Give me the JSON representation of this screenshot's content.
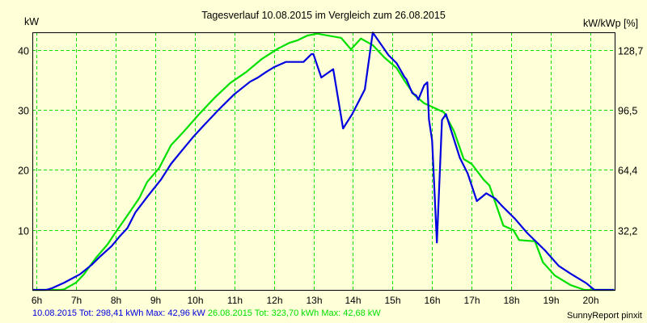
{
  "chart_data": {
    "type": "line",
    "title": "Tagesverlauf 10.08.2015 im Vergleich zum 26.08.2015",
    "xlabel": "",
    "ylabel": "kW",
    "ylabel_right": "kW/kWp [%]",
    "x_ticks": [
      "6h",
      "7h",
      "8h",
      "9h",
      "10h",
      "11h",
      "12h",
      "13h",
      "14h",
      "15h",
      "16h",
      "17h",
      "18h",
      "19h",
      "20h"
    ],
    "y_ticks": [
      10,
      20,
      30,
      40
    ],
    "y_ticks_right": [
      "32,2",
      "64,4",
      "96,5",
      "128,7"
    ],
    "ylim": [
      0,
      43
    ],
    "xlim": [
      5.9,
      20.6
    ],
    "grid": true,
    "series": [
      {
        "name": "10.08.2015",
        "color": "#0000e0",
        "x": [
          5.9,
          6.25,
          6.4,
          6.7,
          7.1,
          7.4,
          7.6,
          7.9,
          8.1,
          8.3,
          8.5,
          8.8,
          9.15,
          9.4,
          9.65,
          9.95,
          10.2,
          10.6,
          11.0,
          11.4,
          11.6,
          11.8,
          12.0,
          12.3,
          12.5,
          12.75,
          12.95,
          13.0,
          13.2,
          13.5,
          13.75,
          13.98,
          14.3,
          14.5,
          14.9,
          15.1,
          15.3,
          15.35,
          15.5,
          15.6,
          15.65,
          15.8,
          15.88,
          15.92,
          16.0,
          16.12,
          16.25,
          16.35,
          16.7,
          16.9,
          17.13,
          17.37,
          17.6,
          17.75,
          18.1,
          18.4,
          18.85,
          19.2,
          19.5,
          19.9,
          20.1,
          20.6
        ],
        "values": [
          0.0,
          0.0,
          0.3,
          1.2,
          2.6,
          4.2,
          5.5,
          7.3,
          8.9,
          10.3,
          12.9,
          15.5,
          18.4,
          21.0,
          23.0,
          25.4,
          27.2,
          30.0,
          32.6,
          34.7,
          35.4,
          36.3,
          37.1,
          38.0,
          38.0,
          38.0,
          39.3,
          39.3,
          35.4,
          36.8,
          26.9,
          29.3,
          33.4,
          42.9,
          39.1,
          37.8,
          35.5,
          35.1,
          32.8,
          32.4,
          31.7,
          34.1,
          34.6,
          28.4,
          24.9,
          7.9,
          28.3,
          29.3,
          22.0,
          19.4,
          14.8,
          16.1,
          15.2,
          14.1,
          11.8,
          9.5,
          6.6,
          4.0,
          2.7,
          1.1,
          0.0,
          0.0
        ]
      },
      {
        "name": "26.08.2015",
        "color": "#00e000",
        "x": [
          5.9,
          6.6,
          6.7,
          7.0,
          7.2,
          7.5,
          7.8,
          8.0,
          8.3,
          8.6,
          8.8,
          9.1,
          9.4,
          9.7,
          10.1,
          10.5,
          10.9,
          11.3,
          11.7,
          12.1,
          12.4,
          12.6,
          12.85,
          13.1,
          13.7,
          13.95,
          14.2,
          14.5,
          14.8,
          15.1,
          15.3,
          15.55,
          15.8,
          16.0,
          16.3,
          16.55,
          16.8,
          17.0,
          17.3,
          17.45,
          17.8,
          18.05,
          18.2,
          18.6,
          18.8,
          19.1,
          19.5,
          19.85,
          20.6
        ],
        "values": [
          0.0,
          0.0,
          0.1,
          1.2,
          2.6,
          5.3,
          7.6,
          9.6,
          12.4,
          15.3,
          18.0,
          20.3,
          24.1,
          26.2,
          29.2,
          32.0,
          34.5,
          36.3,
          38.5,
          40.2,
          41.2,
          41.6,
          42.4,
          42.7,
          42.0,
          40.1,
          41.9,
          40.8,
          38.7,
          37.0,
          34.9,
          32.5,
          31.1,
          30.5,
          29.6,
          26.5,
          21.8,
          21.0,
          18.4,
          17.4,
          10.7,
          10.0,
          8.3,
          8.1,
          4.6,
          2.4,
          0.8,
          0.0,
          0.0
        ]
      }
    ],
    "legend": [
      {
        "label": "10.08.2015 Tot: 298,41 kWh Max: 42,96 kW",
        "color": "#0000e0"
      },
      {
        "label": "26.08.2015 Tot: 323,70 kWh Max: 42,68 kW",
        "color": "#00e000"
      }
    ],
    "annotation": "SunnyReport pinxit"
  },
  "title": "Tagesverlauf 10.08.2015 im Vergleich zum 26.08.2015",
  "axes": {
    "left_label": "kW",
    "right_label": "kW/kWp [%]"
  },
  "footer": {
    "series1_text": "10.08.2015 Tot: 298,41 kWh Max: 42,96 kW ",
    "series2_text": "26.08.2015 Tot: 323,70 kWh Max: 42,68 kW",
    "credit": "SunnyReport pinxit"
  },
  "colors": {
    "background": "#ffffd8",
    "grid": "#00e000",
    "series1": "#0000e0",
    "series2": "#00e000"
  }
}
